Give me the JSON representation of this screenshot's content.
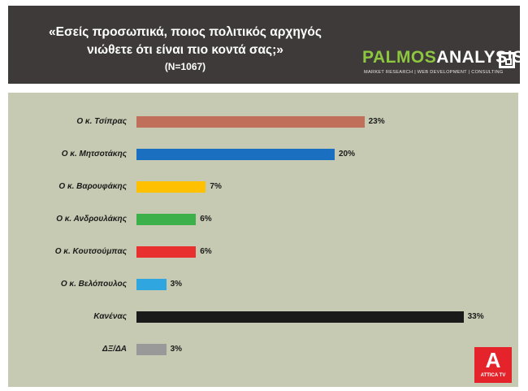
{
  "header": {
    "title_line1": "«Εσείς προσωπικά, ποιος πολιτικός αρχηγός",
    "title_line2": "νιώθετε ότι είναι πιο κοντά σας;»",
    "sample": "(N=1067)"
  },
  "logo": {
    "part1": "PALMOS",
    "part2": "ANALYSIS",
    "tagline": "MARKET RESEARCH | WEB DEVELOPMENT | CONSULTING"
  },
  "broadcaster": {
    "mark": "A",
    "name": "ATTICA TV"
  },
  "chart_data": {
    "type": "bar",
    "orientation": "horizontal",
    "categories": [
      "Ο κ. Τσίπρας",
      "Ο κ. Μητσοτάκης",
      "Ο κ. Βαρουφάκης",
      "Ο κ. Ανδρουλάκης",
      "Ο κ. Κουτσούμπας",
      "Ο κ. Βελόπουλος",
      "Κανένας",
      "ΔΞ/ΔΑ"
    ],
    "values": [
      23,
      20,
      7,
      6,
      6,
      3,
      33,
      3
    ],
    "value_labels": [
      "23%",
      "20%",
      "7%",
      "6%",
      "6%",
      "3%",
      "33%",
      "3%"
    ],
    "colors": [
      "#c0705a",
      "#1a6fc0",
      "#ffc000",
      "#3cb04a",
      "#e8312f",
      "#2fa6e0",
      "#1a1a1a",
      "#999999"
    ],
    "unit": "%",
    "grid": false
  }
}
